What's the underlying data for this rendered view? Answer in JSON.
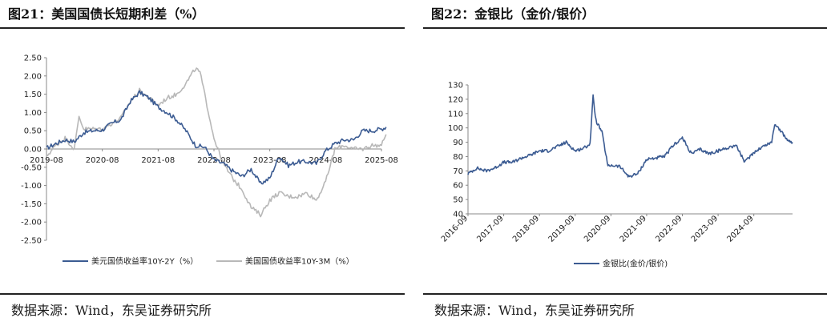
{
  "left_panel": {
    "title": "图21：美国国债长短期利差（%）",
    "source": "数据来源：Wind，东吴证券研究所"
  },
  "right_panel": {
    "title": "图22：金银比（金价/银价）",
    "source": "数据来源：Wind，东吴证券研究所"
  },
  "chart_data": [
    {
      "type": "line",
      "title": "",
      "xlabel": "",
      "ylabel": "",
      "x_ticks": [
        "2019-08",
        "2020-08",
        "2021-08",
        "2022-08",
        "2023-08",
        "2024-08",
        "2025-08"
      ],
      "y_ticks": [
        "2.50",
        "2.00",
        "1.50",
        "1.00",
        "0.50",
        "0.00",
        "-0.50",
        "-1.00",
        "-1.50",
        "-2.00",
        "-2.50"
      ],
      "ylim": [
        -2.5,
        2.5
      ],
      "xlim": [
        "2019-08",
        "2025-08"
      ],
      "grid": false,
      "legend_position": "bottom",
      "series": [
        {
          "name": "美元国债收益率10Y-2Y（%）",
          "color": "#3b5b92",
          "x": [
            "2019-08",
            "2019-10",
            "2019-12",
            "2020-02",
            "2020-04",
            "2020-06",
            "2020-08",
            "2020-10",
            "2020-12",
            "2021-02",
            "2021-04",
            "2021-06",
            "2021-08",
            "2021-10",
            "2021-12",
            "2022-02",
            "2022-04",
            "2022-06",
            "2022-08",
            "2022-10",
            "2022-12",
            "2023-02",
            "2023-04",
            "2023-06",
            "2023-08",
            "2023-10",
            "2023-12",
            "2024-02",
            "2024-04",
            "2024-06",
            "2024-08",
            "2024-10",
            "2024-12",
            "2025-02",
            "2025-04",
            "2025-06",
            "2025-08",
            "2025-09"
          ],
          "values": [
            0.02,
            0.15,
            0.25,
            0.2,
            0.45,
            0.5,
            0.52,
            0.7,
            0.8,
            1.3,
            1.55,
            1.4,
            1.15,
            1.0,
            0.8,
            0.5,
            0.1,
            0.05,
            -0.3,
            -0.4,
            -0.6,
            -0.75,
            -0.55,
            -0.95,
            -0.8,
            -0.2,
            -0.45,
            -0.35,
            -0.35,
            -0.4,
            -0.05,
            0.15,
            0.25,
            0.25,
            0.5,
            0.5,
            0.55,
            0.6
          ]
        },
        {
          "name": "美国国债收益率10Y-3M（%）",
          "color": "#b8b8b8",
          "x": [
            "2019-08",
            "2019-10",
            "2019-12",
            "2020-02",
            "2020-03",
            "2020-04",
            "2020-06",
            "2020-08",
            "2020-10",
            "2020-12",
            "2021-02",
            "2021-04",
            "2021-06",
            "2021-08",
            "2021-10",
            "2021-12",
            "2022-02",
            "2022-04",
            "2022-05",
            "2022-06",
            "2022-08",
            "2022-10",
            "2022-12",
            "2023-02",
            "2023-04",
            "2023-06",
            "2023-08",
            "2023-10",
            "2023-12",
            "2024-02",
            "2024-04",
            "2024-06",
            "2024-08",
            "2024-10",
            "2024-12",
            "2025-02",
            "2025-04",
            "2025-06",
            "2025-08",
            "2025-09"
          ],
          "values": [
            -0.2,
            0.1,
            0.3,
            0.0,
            0.9,
            0.55,
            0.55,
            0.55,
            0.7,
            0.85,
            1.3,
            1.6,
            1.4,
            1.2,
            1.4,
            1.5,
            1.8,
            2.2,
            2.1,
            1.5,
            0.3,
            -0.4,
            -0.8,
            -1.1,
            -1.6,
            -1.8,
            -1.4,
            -1.2,
            -1.3,
            -1.3,
            -1.2,
            -1.4,
            -0.9,
            0.0,
            0.1,
            0.0,
            0.0,
            0.1,
            0.1,
            0.4
          ]
        }
      ]
    },
    {
      "type": "line",
      "title": "",
      "xlabel": "",
      "ylabel": "",
      "x_ticks": [
        "2016-09",
        "2017-09",
        "2018-09",
        "2019-09",
        "2020-09",
        "2021-09",
        "2022-09",
        "2023-09",
        "2024-09"
      ],
      "y_ticks": [
        "130",
        "120",
        "110",
        "100",
        "90",
        "80",
        "70",
        "60",
        "50",
        "40"
      ],
      "ylim": [
        40,
        130
      ],
      "xlim": [
        "2016-09",
        "2025-10"
      ],
      "grid": false,
      "legend_position": "bottom",
      "series": [
        {
          "name": "金银比(金价/银价)",
          "color": "#3b5b92",
          "x": [
            "2016-09",
            "2016-12",
            "2017-03",
            "2017-06",
            "2017-09",
            "2017-12",
            "2018-03",
            "2018-06",
            "2018-09",
            "2018-12",
            "2019-03",
            "2019-06",
            "2019-09",
            "2019-12",
            "2020-02",
            "2020-03",
            "2020-04",
            "2020-06",
            "2020-08",
            "2020-09",
            "2020-12",
            "2021-03",
            "2021-06",
            "2021-09",
            "2021-12",
            "2022-03",
            "2022-06",
            "2022-09",
            "2022-12",
            "2023-03",
            "2023-06",
            "2023-09",
            "2023-12",
            "2024-03",
            "2024-06",
            "2024-09",
            "2024-12",
            "2025-03",
            "2025-04",
            "2025-06",
            "2025-08",
            "2025-10"
          ],
          "values": [
            68,
            72,
            70,
            72,
            76,
            76,
            79,
            81,
            84,
            84,
            87,
            90,
            84,
            86,
            89,
            122,
            105,
            97,
            73,
            74,
            73,
            66,
            68,
            78,
            79,
            80,
            88,
            93,
            82,
            85,
            82,
            84,
            86,
            88,
            76,
            83,
            87,
            90,
            103,
            98,
            92,
            90
          ]
        }
      ]
    }
  ]
}
